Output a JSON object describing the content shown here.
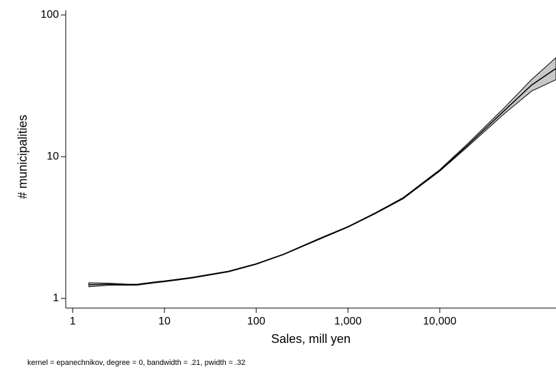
{
  "chart_data": {
    "type": "line",
    "log_x": true,
    "log_y": true,
    "xlabel": "Sales, mill yen",
    "ylabel": "# municipalities",
    "note": "kernel = epanechnikov, degree = 0, bandwidth = .21, pwidth = .32",
    "x": [
      1.5,
      2.5,
      4,
      5,
      8,
      10,
      20,
      50,
      100,
      200,
      500,
      1000,
      2000,
      4000,
      10000,
      20000,
      50000,
      100000,
      185000
    ],
    "values": [
      1.25,
      1.26,
      1.25,
      1.25,
      1.3,
      1.32,
      1.4,
      1.55,
      1.75,
      2.05,
      2.65,
      3.2,
      4.0,
      5.1,
      8.0,
      12,
      21,
      32,
      42
    ],
    "lower": [
      1.21,
      1.24,
      1.24,
      1.24,
      1.29,
      1.31,
      1.39,
      1.54,
      1.74,
      2.04,
      2.63,
      3.18,
      3.97,
      5.05,
      7.9,
      11.7,
      20,
      29,
      35
    ],
    "upper": [
      1.29,
      1.28,
      1.26,
      1.26,
      1.31,
      1.33,
      1.41,
      1.56,
      1.76,
      2.06,
      2.67,
      3.22,
      4.03,
      5.15,
      8.1,
      12.3,
      22,
      35,
      50
    ],
    "color": "#000000",
    "band_color": "#c8c8c8",
    "xlim": [
      0.84,
      185000
    ],
    "ylim": [
      0.855,
      108
    ],
    "xticks": [
      1,
      10,
      100,
      {
        "value": 1000,
        "label": "1,000"
      },
      {
        "value": 10000,
        "label": "10,000"
      }
    ],
    "yticks": [
      1,
      10,
      100
    ],
    "grid": false
  }
}
